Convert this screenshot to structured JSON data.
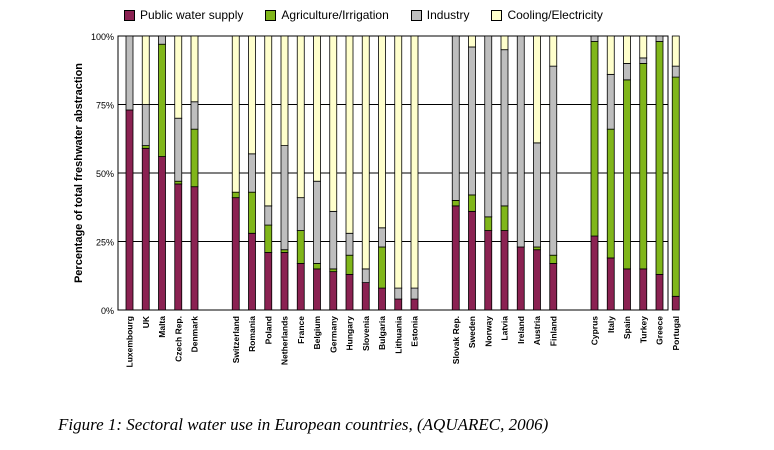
{
  "chart_data": {
    "type": "bar",
    "stacked": true,
    "stack_mode": "percent",
    "title": "",
    "xlabel": "",
    "ylabel": "Percentage of total freshwater abstraction",
    "ylim": [
      0,
      100
    ],
    "yticks": [
      "0%",
      "25%",
      "50%",
      "75%",
      "100%"
    ],
    "grid": true,
    "legend_position": "top",
    "categories": [
      "Luxembourg",
      "UK",
      "Malta",
      "Czech Rep.",
      "Denmark",
      "Switzerland",
      "Romania",
      "Poland",
      "Netherlands",
      "France",
      "Belgium",
      "Germany",
      "Hungary",
      "Slovenia",
      "Bulgaria",
      "Lithuania",
      "Estonia",
      "Slovak Rep.",
      "Sweden",
      "Norway",
      "Latvia",
      "Ireland",
      "Austria",
      "Finland",
      "Cyprus",
      "Italy",
      "Spain",
      "Turkey",
      "Greece",
      "Portugal"
    ],
    "groups": [
      5,
      12,
      7,
      6
    ],
    "series": [
      {
        "name": "Public water supply",
        "color": "#8b2252",
        "values": [
          73,
          59,
          56,
          46,
          45,
          41,
          28,
          21,
          21,
          17,
          15,
          14,
          13,
          10,
          8,
          4,
          4,
          38,
          36,
          29,
          29,
          23,
          22,
          17,
          27,
          19,
          15,
          15,
          13,
          5
        ]
      },
      {
        "name": "Agriculture/Irrigation",
        "color": "#80b61a",
        "values": [
          0,
          1,
          41,
          1,
          21,
          2,
          15,
          10,
          1,
          12,
          2,
          1,
          7,
          0,
          15,
          0,
          0,
          2,
          6,
          5,
          9,
          0,
          1,
          3,
          71,
          47,
          69,
          75,
          85,
          80
        ]
      },
      {
        "name": "Industry",
        "color": "#bebebe",
        "values": [
          27,
          15,
          3,
          23,
          10,
          0,
          14,
          7,
          38,
          12,
          30,
          21,
          8,
          5,
          7,
          4,
          4,
          60,
          54,
          66,
          57,
          77,
          38,
          69,
          2,
          20,
          6,
          2,
          2,
          4
        ]
      },
      {
        "name": "Cooling/Electricity",
        "color": "#ffffcc",
        "values": [
          0,
          25,
          0,
          30,
          24,
          57,
          43,
          62,
          40,
          59,
          53,
          64,
          72,
          85,
          70,
          92,
          92,
          0,
          4,
          0,
          5,
          0,
          39,
          11,
          0,
          14,
          10,
          8,
          0,
          11
        ]
      }
    ]
  },
  "caption": "Figure 1: Sectoral water use in European countries, (AQUAREC, 2006)"
}
